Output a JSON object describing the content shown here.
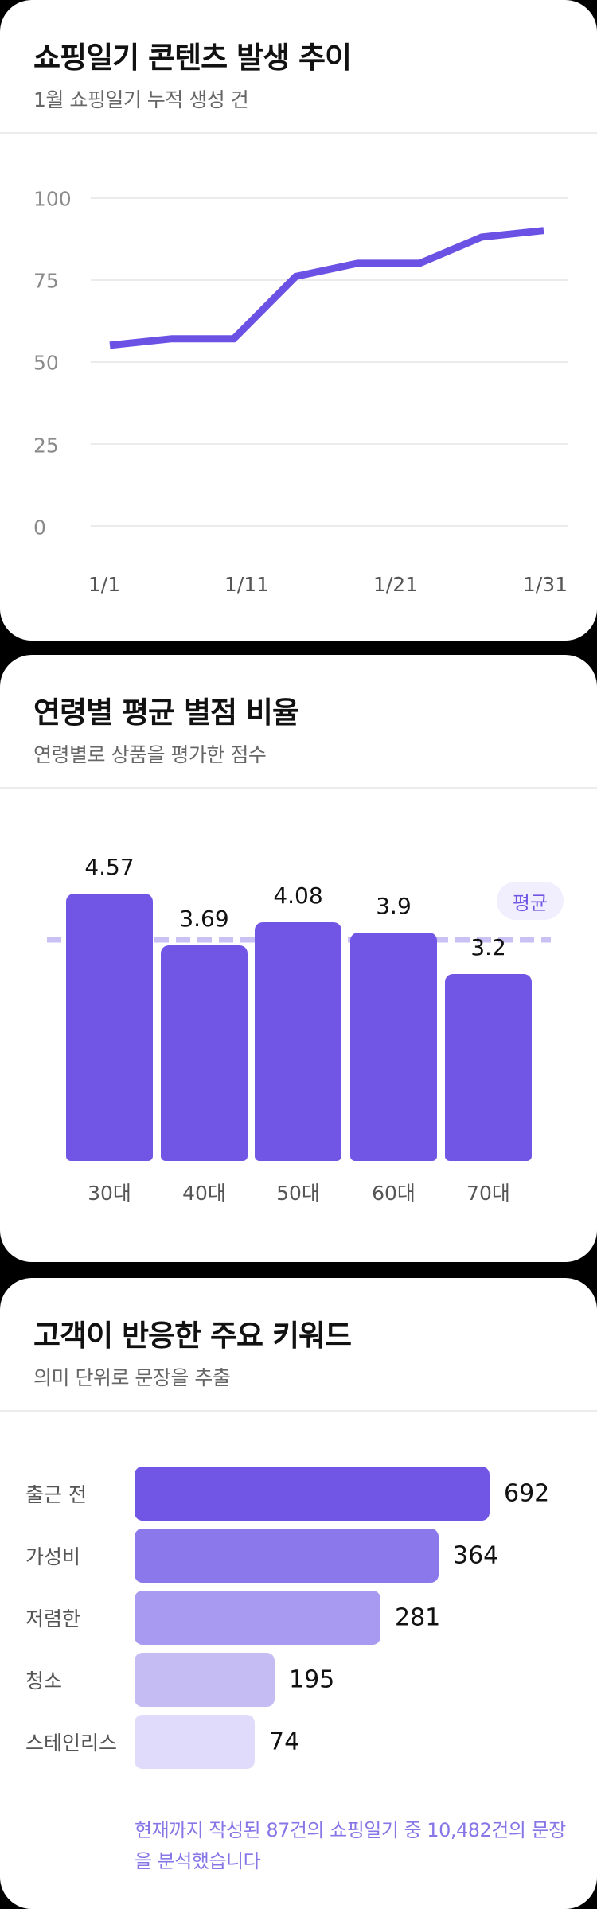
{
  "cards": {
    "trend": {
      "title": "쇼핑일기 콘텐츠 발생 추이",
      "subtitle": "1월 쇼핑일기 누적 생성 건",
      "y_ticks": [
        "100",
        "75",
        "50",
        "25",
        "0"
      ],
      "x_ticks": [
        "1/1",
        "1/11",
        "1/21",
        "1/31"
      ]
    },
    "age_rating": {
      "title": "연령별 평균 별점 비율",
      "subtitle": "연령별로 상품을 평가한 점수",
      "average_label": "평균",
      "bars": [
        {
          "label": "30대",
          "value": "4.57"
        },
        {
          "label": "40대",
          "value": "3.69"
        },
        {
          "label": "50대",
          "value": "4.08"
        },
        {
          "label": "60대",
          "value": "3.9"
        },
        {
          "label": "70대",
          "value": "3.2"
        }
      ]
    },
    "keywords": {
      "title": "고객이 반응한 주요 키워드",
      "subtitle": "의미 단위로 문장을 추출",
      "rows": [
        {
          "label": "출근 전",
          "value": "692",
          "color": "#7156E6"
        },
        {
          "label": "가성비",
          "value": "364",
          "color": "#8B79EB"
        },
        {
          "label": "저렴한",
          "value": "281",
          "color": "#A89AF0"
        },
        {
          "label": "청소",
          "value": "195",
          "color": "#C5BCF4"
        },
        {
          "label": "스테인리스",
          "value": "74",
          "color": "#E0DBFA"
        }
      ],
      "footer_note": "현재까지 작성된 87건의 쇼핑일기 중 10,482건의 문장을 분석했습니다"
    }
  },
  "colors": {
    "accent": "#7156E6",
    "average_line": "#C9C0F4",
    "badge_bg": "#F1EEFD",
    "footer_text": "#8676E6"
  },
  "chart_data": [
    {
      "type": "line",
      "title": "쇼핑일기 콘텐츠 발생 추이",
      "subtitle": "1월 쇼핑일기 누적 생성 건",
      "x": [
        "1/1",
        "1/5",
        "1/9",
        "1/13",
        "1/17",
        "1/21",
        "1/26",
        "1/31"
      ],
      "series": [
        {
          "name": "누적 생성 건",
          "values": [
            55,
            57,
            57,
            76,
            80,
            80,
            88,
            90
          ]
        }
      ],
      "x_tick_labels": [
        "1/1",
        "1/11",
        "1/21",
        "1/31"
      ],
      "y_tick_labels": [
        0,
        25,
        50,
        75,
        100
      ],
      "ylim": [
        0,
        100
      ],
      "grid": true,
      "xlabel": "",
      "ylabel": ""
    },
    {
      "type": "bar",
      "title": "연령별 평균 별점 비율",
      "subtitle": "연령별로 상품을 평가한 점수",
      "categories": [
        "30대",
        "40대",
        "50대",
        "60대",
        "70대"
      ],
      "values": [
        4.57,
        3.69,
        4.08,
        3.9,
        3.2
      ],
      "reference_line": {
        "label": "평균",
        "value": 3.89
      },
      "grid": false,
      "xlabel": "",
      "ylabel": ""
    },
    {
      "type": "bar",
      "orientation": "horizontal",
      "title": "고객이 반응한 주요 키워드",
      "subtitle": "의미 단위로 문장을 추출",
      "categories": [
        "출근 전",
        "가성비",
        "저렴한",
        "청소",
        "스테인리스"
      ],
      "values": [
        692,
        364,
        281,
        195,
        74
      ],
      "annotation": "현재까지 작성된 87건의 쇼핑일기 중 10,482건의 문장을 분석했습니다"
    }
  ]
}
